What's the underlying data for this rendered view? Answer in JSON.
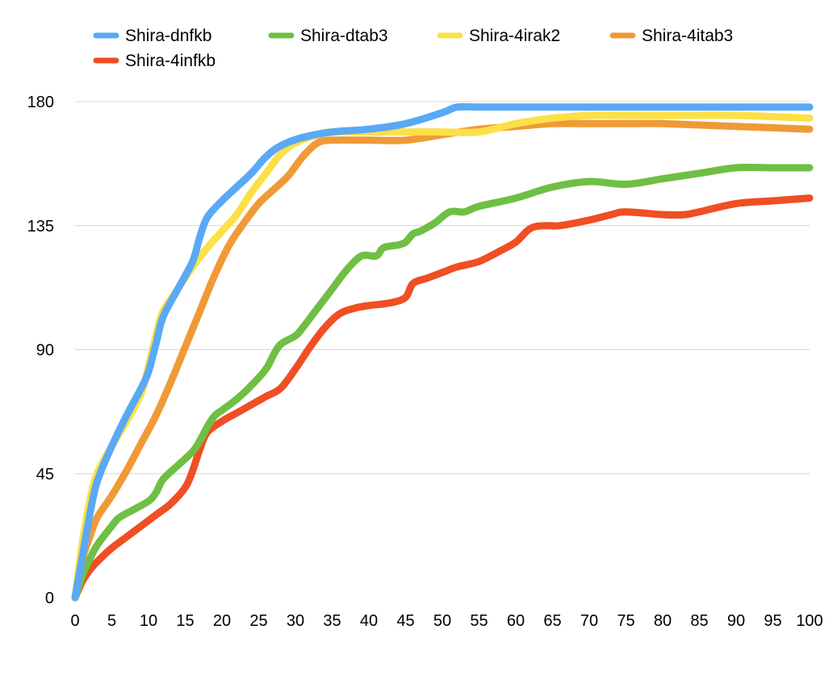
{
  "chart_data": {
    "type": "line",
    "title": "",
    "xlabel": "",
    "ylabel": "",
    "xlim": [
      0,
      100
    ],
    "ylim": [
      0,
      180
    ],
    "x_ticks": [
      0,
      5,
      10,
      15,
      20,
      25,
      30,
      35,
      40,
      45,
      50,
      55,
      60,
      65,
      70,
      75,
      80,
      85,
      90,
      95,
      100
    ],
    "y_ticks": [
      0,
      45,
      90,
      135,
      180
    ],
    "grid": "horizontal",
    "legend_position": "top",
    "series": [
      {
        "name": "Shira-dnfkb",
        "color": "#5aa9f5",
        "points": [
          [
            0,
            0
          ],
          [
            1,
            15
          ],
          [
            2,
            30
          ],
          [
            3,
            42
          ],
          [
            5,
            55
          ],
          [
            7,
            66
          ],
          [
            9,
            76
          ],
          [
            10,
            82
          ],
          [
            11,
            92
          ],
          [
            12,
            102
          ],
          [
            14,
            112
          ],
          [
            16,
            122
          ],
          [
            17,
            131
          ],
          [
            18,
            138
          ],
          [
            20,
            144
          ],
          [
            22,
            149
          ],
          [
            24,
            154
          ],
          [
            26,
            160
          ],
          [
            28,
            164
          ],
          [
            31,
            167
          ],
          [
            35,
            169
          ],
          [
            40,
            170
          ],
          [
            45,
            172
          ],
          [
            50,
            176
          ],
          [
            52,
            178
          ],
          [
            55,
            178
          ],
          [
            60,
            178
          ],
          [
            70,
            178
          ],
          [
            80,
            178
          ],
          [
            90,
            178
          ],
          [
            100,
            178
          ]
        ]
      },
      {
        "name": "Shira-dtab3",
        "color": "#6fbf44",
        "points": [
          [
            0,
            0
          ],
          [
            1,
            8
          ],
          [
            2,
            14
          ],
          [
            3,
            19
          ],
          [
            5,
            26
          ],
          [
            6,
            29
          ],
          [
            8,
            32
          ],
          [
            10,
            35
          ],
          [
            11,
            38
          ],
          [
            12,
            43
          ],
          [
            14,
            48
          ],
          [
            16,
            53
          ],
          [
            17,
            57
          ],
          [
            18,
            62
          ],
          [
            19,
            66
          ],
          [
            20,
            68
          ],
          [
            22,
            72
          ],
          [
            24,
            77
          ],
          [
            26,
            83
          ],
          [
            27,
            88
          ],
          [
            28,
            92
          ],
          [
            30,
            95
          ],
          [
            31,
            98
          ],
          [
            33,
            105
          ],
          [
            35,
            112
          ],
          [
            37,
            119
          ],
          [
            39,
            124
          ],
          [
            41,
            124
          ],
          [
            42,
            127
          ],
          [
            44,
            128
          ],
          [
            45,
            129
          ],
          [
            46,
            132
          ],
          [
            47,
            133
          ],
          [
            49,
            136
          ],
          [
            51,
            140
          ],
          [
            53,
            140
          ],
          [
            55,
            142
          ],
          [
            60,
            145
          ],
          [
            65,
            149
          ],
          [
            70,
            151
          ],
          [
            75,
            150
          ],
          [
            80,
            152
          ],
          [
            85,
            154
          ],
          [
            90,
            156
          ],
          [
            95,
            156
          ],
          [
            100,
            156
          ]
        ]
      },
      {
        "name": "Shira-4irak2",
        "color": "#fde047",
        "points": [
          [
            0,
            0
          ],
          [
            1,
            20
          ],
          [
            2,
            35
          ],
          [
            3,
            45
          ],
          [
            5,
            55
          ],
          [
            7,
            64
          ],
          [
            9,
            74
          ],
          [
            10,
            84
          ],
          [
            11,
            95
          ],
          [
            12,
            104
          ],
          [
            14,
            112
          ],
          [
            16,
            120
          ],
          [
            18,
            127
          ],
          [
            20,
            133
          ],
          [
            22,
            139
          ],
          [
            24,
            147
          ],
          [
            26,
            154
          ],
          [
            28,
            161
          ],
          [
            30,
            165
          ],
          [
            33,
            168
          ],
          [
            35,
            169
          ],
          [
            40,
            169
          ],
          [
            45,
            169
          ],
          [
            50,
            169
          ],
          [
            55,
            169
          ],
          [
            60,
            172
          ],
          [
            65,
            174
          ],
          [
            70,
            175
          ],
          [
            75,
            175
          ],
          [
            80,
            175
          ],
          [
            90,
            175
          ],
          [
            100,
            174
          ]
        ]
      },
      {
        "name": "Shira-4itab3",
        "color": "#ef9a36",
        "points": [
          [
            0,
            0
          ],
          [
            1,
            14
          ],
          [
            2,
            22
          ],
          [
            3,
            29
          ],
          [
            5,
            37
          ],
          [
            7,
            46
          ],
          [
            9,
            56
          ],
          [
            11,
            66
          ],
          [
            13,
            78
          ],
          [
            15,
            91
          ],
          [
            17,
            104
          ],
          [
            19,
            117
          ],
          [
            21,
            128
          ],
          [
            23,
            136
          ],
          [
            25,
            143
          ],
          [
            27,
            148
          ],
          [
            29,
            153
          ],
          [
            31,
            160
          ],
          [
            33,
            165
          ],
          [
            35,
            166
          ],
          [
            40,
            166
          ],
          [
            45,
            166
          ],
          [
            50,
            168
          ],
          [
            55,
            170
          ],
          [
            60,
            171
          ],
          [
            65,
            172
          ],
          [
            70,
            172
          ],
          [
            75,
            172
          ],
          [
            80,
            172
          ],
          [
            90,
            171
          ],
          [
            100,
            170
          ]
        ]
      },
      {
        "name": "Shira-4infkb",
        "color": "#f04e23",
        "points": [
          [
            0,
            0
          ],
          [
            1,
            6
          ],
          [
            2,
            10
          ],
          [
            3,
            13
          ],
          [
            5,
            18
          ],
          [
            7,
            22
          ],
          [
            9,
            26
          ],
          [
            11,
            30
          ],
          [
            13,
            34
          ],
          [
            15,
            40
          ],
          [
            16,
            46
          ],
          [
            17,
            54
          ],
          [
            18,
            60
          ],
          [
            20,
            64
          ],
          [
            22,
            67
          ],
          [
            24,
            70
          ],
          [
            26,
            73
          ],
          [
            28,
            76
          ],
          [
            30,
            83
          ],
          [
            32,
            91
          ],
          [
            34,
            98
          ],
          [
            36,
            103
          ],
          [
            38,
            105
          ],
          [
            40,
            106
          ],
          [
            43,
            107
          ],
          [
            45,
            109
          ],
          [
            46,
            114
          ],
          [
            48,
            116
          ],
          [
            50,
            118
          ],
          [
            52,
            120
          ],
          [
            55,
            122
          ],
          [
            58,
            126
          ],
          [
            60,
            129
          ],
          [
            62,
            134
          ],
          [
            64,
            135
          ],
          [
            66,
            135
          ],
          [
            70,
            137
          ],
          [
            73,
            139
          ],
          [
            75,
            140
          ],
          [
            80,
            139
          ],
          [
            83,
            139
          ],
          [
            85,
            140
          ],
          [
            90,
            143
          ],
          [
            95,
            144
          ],
          [
            100,
            145
          ]
        ]
      }
    ]
  }
}
